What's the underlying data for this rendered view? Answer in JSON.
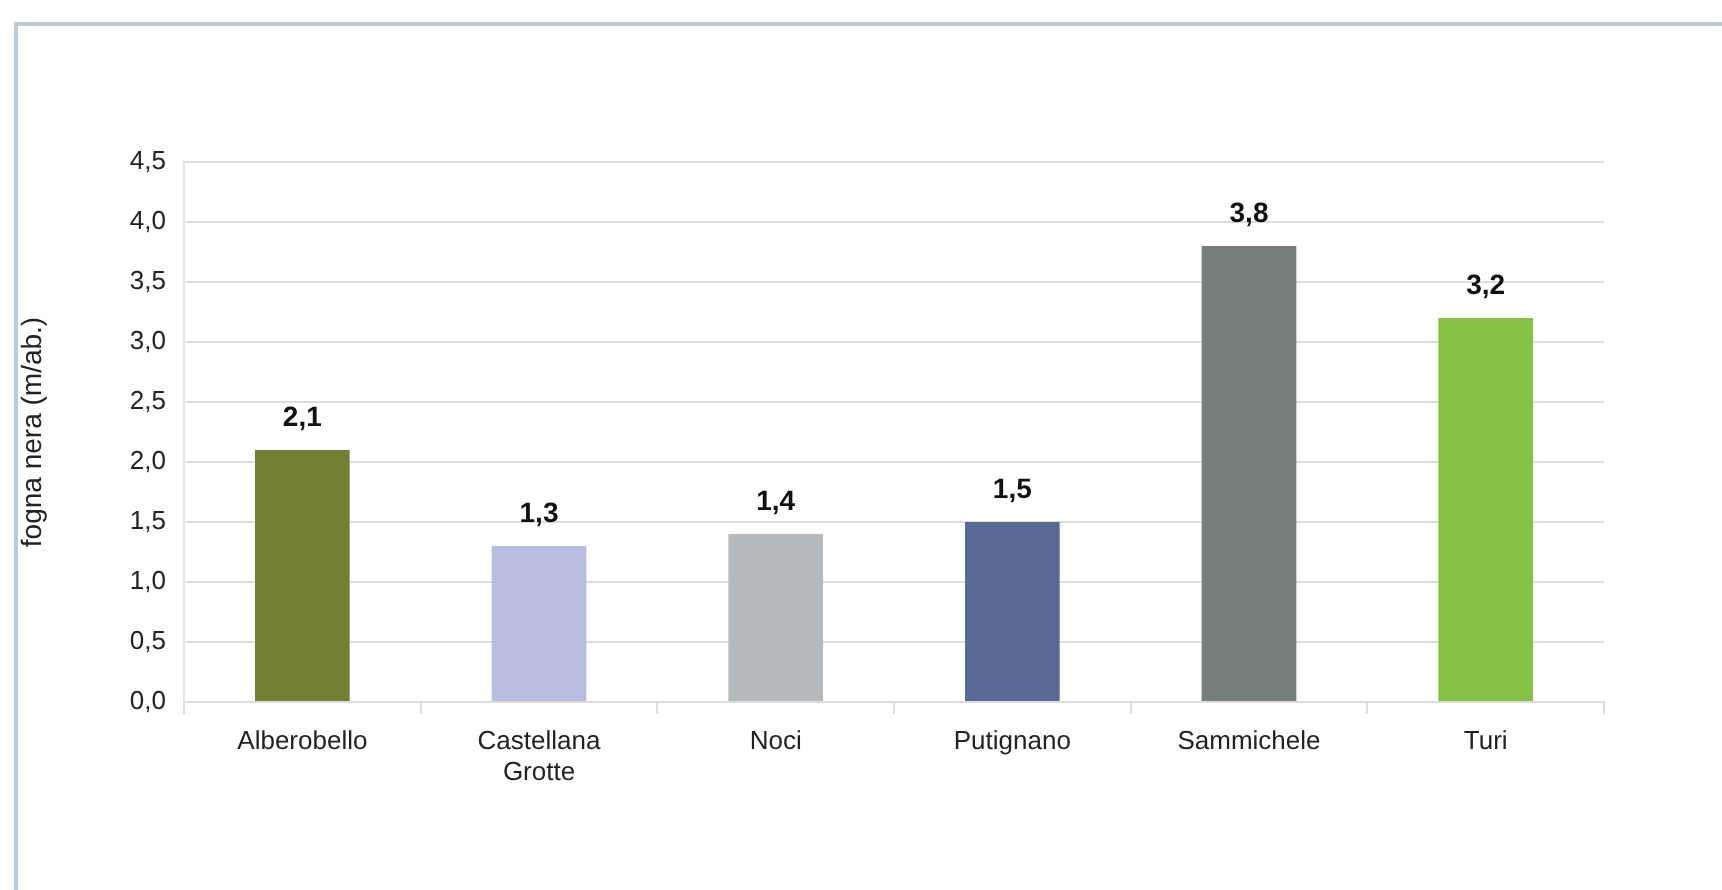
{
  "chart_data": {
    "type": "bar",
    "ylabel": "fogna nera (m/ab.)",
    "categories": [
      "Alberobello",
      "Castellana Grotte",
      "Noci",
      "Putignano",
      "Sammichele",
      "Turi"
    ],
    "values": [
      2.1,
      1.3,
      1.4,
      1.5,
      3.8,
      3.2
    ],
    "colors": [
      "#747f33",
      "#b9bde0",
      "#b6b9bb",
      "#5a6993",
      "#767e7e",
      "#86c247"
    ],
    "value_labels": [
      "2,1",
      "1,3",
      "1,4",
      "1,5",
      "3,8",
      "3,2"
    ],
    "ylim": [
      0,
      4.5
    ],
    "yticks": [
      {
        "value": 0,
        "label": "0,0"
      },
      {
        "value": 0.5,
        "label": "0,5"
      },
      {
        "value": 1,
        "label": "1,0"
      },
      {
        "value": 1.5,
        "label": "1,5"
      },
      {
        "value": 2,
        "label": "2,0"
      },
      {
        "value": 2.5,
        "label": "2,5"
      },
      {
        "value": 3,
        "label": "3,0"
      },
      {
        "value": 3.5,
        "label": "3,5"
      },
      {
        "value": 4,
        "label": "4,0"
      },
      {
        "value": 4.5,
        "label": "4,5"
      }
    ],
    "grid": "y"
  }
}
